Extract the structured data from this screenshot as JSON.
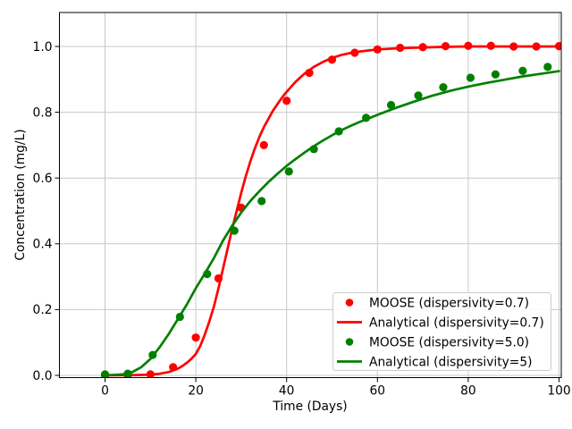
{
  "chart_data": {
    "type": "line",
    "title": "",
    "xlabel": "Time (Days)",
    "ylabel": "Concentration (mg/L)",
    "xlim": [
      -10,
      101
    ],
    "ylim": [
      0,
      1.1
    ],
    "grid": true,
    "legend_position": "lower right",
    "x_tick_values": [
      0,
      20,
      40,
      60,
      80,
      100
    ],
    "x_tick_labels": [
      "0",
      "20",
      "40",
      "60",
      "80",
      "100"
    ],
    "y_tick_values": [
      0.0,
      0.2,
      0.4,
      0.6,
      0.8,
      1.0
    ],
    "y_tick_labels": [
      "0.0",
      "0.2",
      "0.4",
      "0.6",
      "0.8",
      "1.0"
    ],
    "colors": {
      "background": "#ffffff",
      "grid": "#c8c8c8",
      "spine": "#000000",
      "red_series": "#ff0000",
      "green_series": "#008000",
      "legend_border": "#cccccc"
    },
    "series": [
      {
        "name": "MOOSE (dispersivity=0.7)",
        "kind": "scatter",
        "color": "#ff0000",
        "x": [
          0,
          5,
          10,
          15,
          20,
          25,
          30,
          35,
          40,
          45,
          50,
          55,
          60,
          65,
          70,
          75,
          80,
          85,
          90,
          95,
          100
        ],
        "y": [
          0.0,
          0.0,
          0.003,
          0.025,
          0.115,
          0.295,
          0.51,
          0.7,
          0.835,
          0.92,
          0.96,
          0.981,
          0.991,
          0.996,
          0.998,
          1.001,
          1.002,
          1.002,
          1.0,
          1.0,
          1.001
        ]
      },
      {
        "name": "Analytical (dispersivity=0.7)",
        "kind": "line",
        "color": "#ff0000",
        "x": [
          0,
          5,
          10,
          12,
          14,
          16,
          17,
          18,
          19,
          20,
          21,
          22,
          23,
          24,
          25,
          26,
          27,
          28,
          29,
          30,
          31,
          32,
          33,
          34,
          35,
          36,
          37,
          38,
          39,
          40,
          42,
          44,
          46,
          48,
          50,
          52,
          55,
          60,
          65,
          70,
          75,
          80,
          90,
          100
        ],
        "y": [
          0,
          0.0005,
          0.002,
          0.005,
          0.01,
          0.02,
          0.028,
          0.038,
          0.05,
          0.065,
          0.09,
          0.125,
          0.165,
          0.21,
          0.265,
          0.325,
          0.385,
          0.445,
          0.5,
          0.555,
          0.605,
          0.65,
          0.69,
          0.725,
          0.755,
          0.78,
          0.805,
          0.825,
          0.845,
          0.862,
          0.893,
          0.918,
          0.938,
          0.953,
          0.965,
          0.974,
          0.983,
          0.991,
          0.995,
          0.997,
          0.999,
          1.0,
          1.0,
          1.0
        ]
      },
      {
        "name": "MOOSE (dispersivity=5.0)",
        "kind": "scatter",
        "color": "#008000",
        "x": [
          0,
          5,
          10.5,
          16.5,
          22.5,
          28.5,
          34.5,
          40.5,
          46,
          51.5,
          57.5,
          63,
          69,
          74.5,
          80.5,
          86,
          92,
          97.5
        ],
        "y": [
          0.003,
          0.005,
          0.062,
          0.178,
          0.308,
          0.44,
          0.53,
          0.62,
          0.688,
          0.742,
          0.783,
          0.822,
          0.851,
          0.876,
          0.905,
          0.915,
          0.926,
          0.938
        ]
      },
      {
        "name": "Analytical (dispersivity=5)",
        "kind": "line",
        "color": "#008000",
        "x": [
          0,
          4,
          6,
          8,
          10,
          12,
          14,
          16,
          18,
          20,
          22,
          24,
          26,
          28,
          30,
          32,
          34,
          36,
          38,
          40,
          42,
          44,
          46,
          48,
          50,
          52,
          54,
          56,
          58,
          60,
          64,
          68,
          72,
          76,
          80,
          84,
          88,
          92,
          96,
          100
        ],
        "y": [
          0,
          0.003,
          0.01,
          0.025,
          0.05,
          0.085,
          0.125,
          0.17,
          0.215,
          0.265,
          0.31,
          0.357,
          0.41,
          0.455,
          0.495,
          0.53,
          0.56,
          0.588,
          0.613,
          0.637,
          0.658,
          0.678,
          0.697,
          0.714,
          0.73,
          0.745,
          0.758,
          0.77,
          0.781,
          0.792,
          0.813,
          0.832,
          0.85,
          0.865,
          0.878,
          0.889,
          0.899,
          0.909,
          0.917,
          0.925
        ]
      }
    ]
  }
}
